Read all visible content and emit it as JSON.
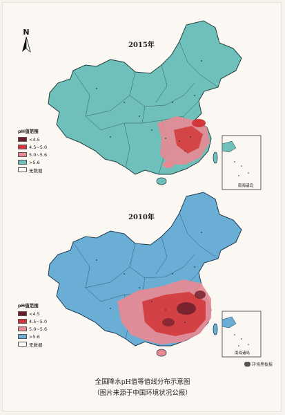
{
  "north_label": "N",
  "panel_2015": {
    "title": "2015年",
    "inset_label": "南海诸岛",
    "legend_title": "pH值范围",
    "legend": [
      {
        "label": "<4.5",
        "color": "#6b1f2a"
      },
      {
        "label": "4.5~5.0",
        "color": "#d2383b"
      },
      {
        "label": "5.0~5.6",
        "color": "#e88a92"
      },
      {
        "label": ">5.6",
        "color": "#6fbfba"
      },
      {
        "label": "无数据",
        "color": "#ffffff"
      }
    ]
  },
  "panel_2010": {
    "title": "2010年",
    "inset_label": "南海诸岛",
    "legend_title": "pH值范围",
    "legend": [
      {
        "label": "<4.5",
        "color": "#6b1f2a"
      },
      {
        "label": "4.5~5.0",
        "color": "#d2383b"
      },
      {
        "label": "5.0~5.6",
        "color": "#e88a92"
      },
      {
        "label": ">5.6",
        "color": "#6aaed6"
      },
      {
        "label": "无数据",
        "color": "#ffffff"
      }
    ]
  },
  "caption": {
    "line1": "全国降水pH值等值线分布示意图",
    "line2": "（图片来源于中国环境状况公报）"
  },
  "watermark": "环境黑板报"
}
